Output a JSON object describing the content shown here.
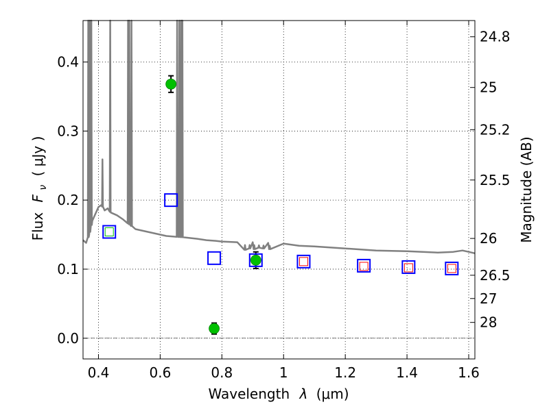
{
  "chart_data": {
    "type": "scatter",
    "xlabel_prefix": "Wavelength",
    "xlabel_symbol": "λ",
    "xlabel_unit": "(μm)",
    "ylabel_prefix": "Flux",
    "ylabel_symbol": "F",
    "ylabel_subscript": "ν",
    "ylabel_unit": "( μJy )",
    "y2label": "Magnitude (AB)",
    "xlim": [
      0.35,
      1.62
    ],
    "ylim": [
      -0.03,
      0.46
    ],
    "grid": true,
    "x_ticks": [
      0.4,
      0.6,
      0.8,
      1.0,
      1.2,
      1.4,
      1.6
    ],
    "x_tick_labels": [
      "0.4",
      "0.6",
      "0.8",
      "1",
      "1.2",
      "1.4",
      "1.6"
    ],
    "y_ticks": [
      0.0,
      0.1,
      0.2,
      0.3,
      0.4
    ],
    "y_tick_labels": [
      "0.0",
      "0.1",
      "0.2",
      "0.3",
      "0.4"
    ],
    "mag_ticks": [
      {
        "label": "24.8",
        "flux": 0.4365
      },
      {
        "label": "25",
        "flux": 0.3631
      },
      {
        "label": "25.2",
        "flux": 0.302
      },
      {
        "label": "25.5",
        "flux": 0.2291
      },
      {
        "label": "26",
        "flux": 0.1445
      },
      {
        "label": "26.5",
        "flux": 0.0912
      },
      {
        "label": "27",
        "flux": 0.0575
      },
      {
        "label": "28",
        "flux": 0.0229
      }
    ],
    "series": [
      {
        "kind": "observed",
        "color": "#00c000",
        "points": [
          {
            "x": 0.635,
            "y": 0.368,
            "err": 0.012
          },
          {
            "x": 0.775,
            "y": 0.014,
            "err": 0.008
          },
          {
            "x": 0.91,
            "y": 0.113,
            "err": 0.012
          }
        ]
      },
      {
        "kind": "model-blue",
        "color": "#0000ff",
        "points": [
          {
            "x": 0.435,
            "y": 0.154
          },
          {
            "x": 0.635,
            "y": 0.2
          },
          {
            "x": 0.775,
            "y": 0.116
          },
          {
            "x": 0.91,
            "y": 0.113
          },
          {
            "x": 1.065,
            "y": 0.111
          },
          {
            "x": 1.26,
            "y": 0.105
          },
          {
            "x": 1.405,
            "y": 0.103
          },
          {
            "x": 1.545,
            "y": 0.101
          }
        ]
      },
      {
        "kind": "model-red",
        "color": "#ff0000",
        "points": [
          {
            "x": 1.065,
            "y": 0.111
          },
          {
            "x": 1.26,
            "y": 0.104
          },
          {
            "x": 1.405,
            "y": 0.102
          },
          {
            "x": 1.545,
            "y": 0.101
          }
        ]
      },
      {
        "kind": "model-green",
        "color": "#00c000",
        "points": [
          {
            "x": 0.435,
            "y": 0.154
          }
        ]
      }
    ],
    "spectrum": {
      "color": "#808080",
      "continuum": [
        [
          0.35,
          0.142
        ],
        [
          0.36,
          0.138
        ],
        [
          0.37,
          0.15
        ],
        [
          0.38,
          0.17
        ],
        [
          0.39,
          0.18
        ],
        [
          0.4,
          0.19
        ],
        [
          0.41,
          0.193
        ],
        [
          0.42,
          0.185
        ],
        [
          0.43,
          0.188
        ],
        [
          0.44,
          0.182
        ],
        [
          0.45,
          0.18
        ],
        [
          0.46,
          0.178
        ],
        [
          0.48,
          0.172
        ],
        [
          0.5,
          0.165
        ],
        [
          0.52,
          0.158
        ],
        [
          0.55,
          0.155
        ],
        [
          0.58,
          0.152
        ],
        [
          0.6,
          0.15
        ],
        [
          0.62,
          0.148
        ],
        [
          0.65,
          0.147
        ],
        [
          0.68,
          0.146
        ],
        [
          0.7,
          0.145
        ],
        [
          0.72,
          0.144
        ],
        [
          0.75,
          0.142
        ],
        [
          0.78,
          0.141
        ],
        [
          0.8,
          0.14
        ],
        [
          0.85,
          0.139
        ],
        [
          0.9,
          0.139
        ],
        [
          0.95,
          0.138
        ],
        [
          1.0,
          0.137
        ],
        [
          1.05,
          0.134
        ],
        [
          1.1,
          0.133
        ],
        [
          1.2,
          0.13
        ],
        [
          1.3,
          0.127
        ],
        [
          1.4,
          0.126
        ],
        [
          1.5,
          0.124
        ],
        [
          1.55,
          0.125
        ],
        [
          1.58,
          0.127
        ],
        [
          1.6,
          0.125
        ],
        [
          1.62,
          0.123
        ]
      ],
      "spikes": [
        [
          0.367,
          0.46
        ],
        [
          0.372,
          0.46
        ],
        [
          0.377,
          0.46
        ],
        [
          0.413,
          0.259
        ],
        [
          0.438,
          0.46
        ],
        [
          0.496,
          0.46
        ],
        [
          0.5,
          0.46
        ],
        [
          0.507,
          0.46
        ],
        [
          0.655,
          0.46
        ],
        [
          0.662,
          0.46
        ],
        [
          0.668,
          0.46
        ],
        [
          0.672,
          0.46
        ]
      ],
      "absorptions": [
        [
          0.875,
          0.128
        ],
        [
          0.89,
          0.13
        ],
        [
          0.905,
          0.129
        ],
        [
          0.92,
          0.131
        ],
        [
          0.935,
          0.13
        ],
        [
          0.955,
          0.129
        ]
      ]
    }
  }
}
